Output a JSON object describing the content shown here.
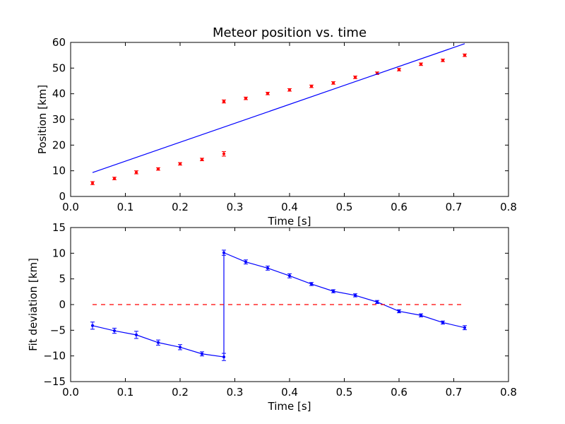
{
  "chart_data": [
    {
      "type": "scatter",
      "title": "Meteor position vs. time",
      "xlabel": "Time [s]",
      "ylabel": "Position [km]",
      "xlim": [
        0.0,
        0.8
      ],
      "ylim": [
        0,
        60
      ],
      "xticks": [
        "0.0",
        "0.1",
        "0.2",
        "0.3",
        "0.4",
        "0.5",
        "0.6",
        "0.7",
        "0.8"
      ],
      "yticks": [
        "0",
        "10",
        "20",
        "30",
        "40",
        "50",
        "60"
      ],
      "grid": false,
      "series": [
        {
          "kind": "errorbar-points",
          "color": "#ff0000",
          "x": [
            0.04,
            0.08,
            0.12,
            0.16,
            0.2,
            0.24,
            0.28,
            0.28,
            0.32,
            0.36,
            0.4,
            0.44,
            0.48,
            0.52,
            0.56,
            0.6,
            0.64,
            0.68,
            0.72
          ],
          "y": [
            5.2,
            7.0,
            9.4,
            10.7,
            12.7,
            14.4,
            16.6,
            37.0,
            38.2,
            40.1,
            41.5,
            42.9,
            44.2,
            46.4,
            48.0,
            49.4,
            51.5,
            53.0,
            55.0
          ],
          "yerr": [
            0.6,
            0.5,
            0.6,
            0.5,
            0.5,
            0.5,
            0.9,
            0.6,
            0.5,
            0.5,
            0.5,
            0.5,
            0.5,
            0.5,
            0.5,
            0.5,
            0.5,
            0.5,
            0.5
          ]
        },
        {
          "kind": "fit-line",
          "color": "#0000ff",
          "x": [
            0.04,
            0.72
          ],
          "y": [
            9.3,
            59.5
          ]
        }
      ]
    },
    {
      "type": "line",
      "title": "",
      "xlabel": "Time [s]",
      "ylabel": "Fit deviation [km]",
      "xlim": [
        0.0,
        0.8
      ],
      "ylim": [
        -15,
        15
      ],
      "xticks": [
        "0.0",
        "0.1",
        "0.2",
        "0.3",
        "0.4",
        "0.5",
        "0.6",
        "0.7",
        "0.8"
      ],
      "yticks": [
        "15",
        "10",
        "5",
        "0",
        "−5",
        "−10",
        "−15"
      ],
      "grid": false,
      "series": [
        {
          "kind": "errorbar-line",
          "color": "#0000ff",
          "x": [
            0.04,
            0.08,
            0.12,
            0.16,
            0.2,
            0.24,
            0.28,
            0.28,
            0.32,
            0.36,
            0.4,
            0.44,
            0.48,
            0.52,
            0.56,
            0.6,
            0.64,
            0.68,
            0.72
          ],
          "y": [
            -4.1,
            -5.1,
            -5.9,
            -7.4,
            -8.3,
            -9.6,
            -10.2,
            10.1,
            8.3,
            7.1,
            5.6,
            4.0,
            2.6,
            1.8,
            0.5,
            -1.3,
            -2.1,
            -3.5,
            -4.5
          ],
          "yerr": [
            0.7,
            0.5,
            0.7,
            0.5,
            0.5,
            0.4,
            0.7,
            0.5,
            0.4,
            0.4,
            0.4,
            0.3,
            0.3,
            0.3,
            0.3,
            0.3,
            0.3,
            0.3,
            0.4
          ]
        },
        {
          "kind": "zero-reference",
          "color": "#ff0000",
          "dashed": true,
          "x": [
            0.04,
            0.72
          ],
          "y": [
            0,
            0
          ]
        }
      ]
    }
  ]
}
